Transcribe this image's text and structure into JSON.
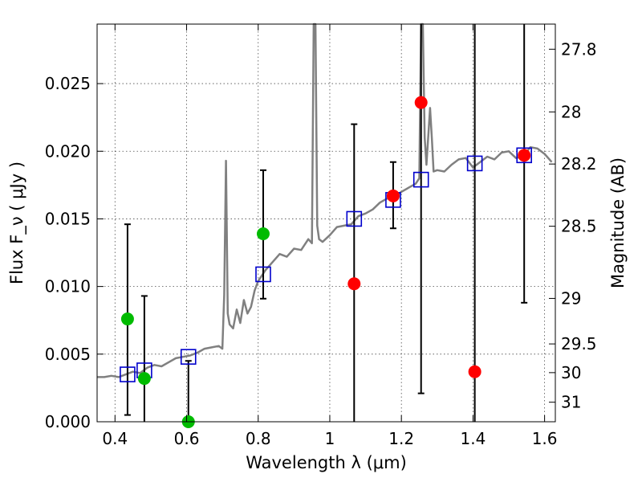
{
  "chart_data": {
    "type": "scatter",
    "xlabel": "Wavelength  λ (μm)",
    "ylabel": "Flux  F_ν  ( μJy )",
    "ylabel_right": "Magnitude (AB)",
    "xlim": [
      0.35,
      1.63
    ],
    "ylim": [
      0.0,
      0.0294
    ],
    "grid": true,
    "x_ticks": [
      0.4,
      0.6,
      0.8,
      1.0,
      1.2,
      1.4,
      1.6
    ],
    "x_tick_labels": [
      "0.4",
      "0.6",
      "0.8",
      "1",
      "1.2",
      "1.4",
      "1.6"
    ],
    "y_ticks": [
      0.0,
      0.005,
      0.01,
      0.015,
      0.02,
      0.025
    ],
    "y_tick_labels": [
      "0.000",
      "0.005",
      "0.010",
      "0.015",
      "0.020",
      "0.025"
    ],
    "right_ticks": [
      {
        "label": "27.8",
        "mag": 27.8
      },
      {
        "label": "28",
        "mag": 28.0
      },
      {
        "label": "28.2",
        "mag": 28.2
      },
      {
        "label": "28.5",
        "mag": 28.5
      },
      {
        "label": "29",
        "mag": 29.0
      },
      {
        "label": "29.5",
        "mag": 29.5
      },
      {
        "label": "30",
        "mag": 30.0
      },
      {
        "label": "31",
        "mag": 31.0
      }
    ],
    "colors": {
      "spectrum": "#808080",
      "model": "#0000cc",
      "green": "#00bb00",
      "red": "#ff0000",
      "errorbar": "#000000"
    },
    "spectrum": {
      "x": [
        0.35,
        0.37,
        0.39,
        0.41,
        0.43,
        0.45,
        0.47,
        0.49,
        0.51,
        0.53,
        0.55,
        0.57,
        0.59,
        0.61,
        0.63,
        0.65,
        0.67,
        0.69,
        0.7,
        0.705,
        0.71,
        0.715,
        0.72,
        0.73,
        0.74,
        0.75,
        0.76,
        0.77,
        0.78,
        0.79,
        0.8,
        0.82,
        0.84,
        0.86,
        0.88,
        0.9,
        0.92,
        0.94,
        0.95,
        0.955,
        0.96,
        0.965,
        0.97,
        0.98,
        1.0,
        1.02,
        1.04,
        1.06,
        1.08,
        1.1,
        1.12,
        1.14,
        1.16,
        1.18,
        1.2,
        1.22,
        1.24,
        1.25,
        1.255,
        1.26,
        1.265,
        1.27,
        1.28,
        1.285,
        1.29,
        1.3,
        1.32,
        1.34,
        1.36,
        1.38,
        1.4,
        1.42,
        1.44,
        1.46,
        1.48,
        1.5,
        1.52,
        1.54,
        1.56,
        1.58,
        1.6,
        1.62
      ],
      "y": [
        0.0033,
        0.0033,
        0.0034,
        0.0033,
        0.0035,
        0.0037,
        0.0036,
        0.004,
        0.0042,
        0.0041,
        0.0044,
        0.0047,
        0.0048,
        0.0049,
        0.0051,
        0.0054,
        0.0055,
        0.0056,
        0.0054,
        0.0094,
        0.0193,
        0.008,
        0.0072,
        0.0069,
        0.0083,
        0.0073,
        0.009,
        0.008,
        0.0085,
        0.0097,
        0.0104,
        0.0112,
        0.0118,
        0.0124,
        0.0122,
        0.0128,
        0.0127,
        0.0135,
        0.0132,
        0.0294,
        0.0294,
        0.0145,
        0.0135,
        0.0133,
        0.0138,
        0.0144,
        0.0145,
        0.0146,
        0.0152,
        0.0154,
        0.0157,
        0.0162,
        0.0165,
        0.0166,
        0.017,
        0.0173,
        0.0176,
        0.018,
        0.0294,
        0.0294,
        0.021,
        0.019,
        0.0232,
        0.021,
        0.0185,
        0.0186,
        0.0185,
        0.019,
        0.0194,
        0.0195,
        0.0188,
        0.0192,
        0.0196,
        0.0194,
        0.0199,
        0.02,
        0.0195,
        0.0196,
        0.0203,
        0.0202,
        0.0198,
        0.0192
      ]
    },
    "model_points": {
      "x": [
        0.435,
        0.482,
        0.605,
        0.814,
        1.068,
        1.177,
        1.255,
        1.405,
        1.543
      ],
      "y": [
        0.0035,
        0.0038,
        0.0048,
        0.0109,
        0.015,
        0.0164,
        0.0179,
        0.0191,
        0.0197
      ]
    },
    "green_points": {
      "x": [
        0.435,
        0.482,
        0.605,
        0.814
      ],
      "y": [
        0.0076,
        0.0032,
        0.0,
        0.0139
      ],
      "yerr_low": [
        0.0005,
        0.0,
        0.0,
        0.0091
      ],
      "yerr_high": [
        0.0146,
        0.0093,
        0.0045,
        0.0186
      ]
    },
    "red_points": {
      "x": [
        1.068,
        1.177,
        1.255,
        1.405,
        1.543
      ],
      "y": [
        0.0102,
        0.0167,
        0.0236,
        0.0037,
        0.0197
      ],
      "yerr_low": [
        0.0,
        0.0143,
        0.0021,
        0.0,
        0.0088
      ],
      "yerr_high": [
        0.022,
        0.0192,
        0.0294,
        0.0294,
        0.0294
      ]
    }
  }
}
